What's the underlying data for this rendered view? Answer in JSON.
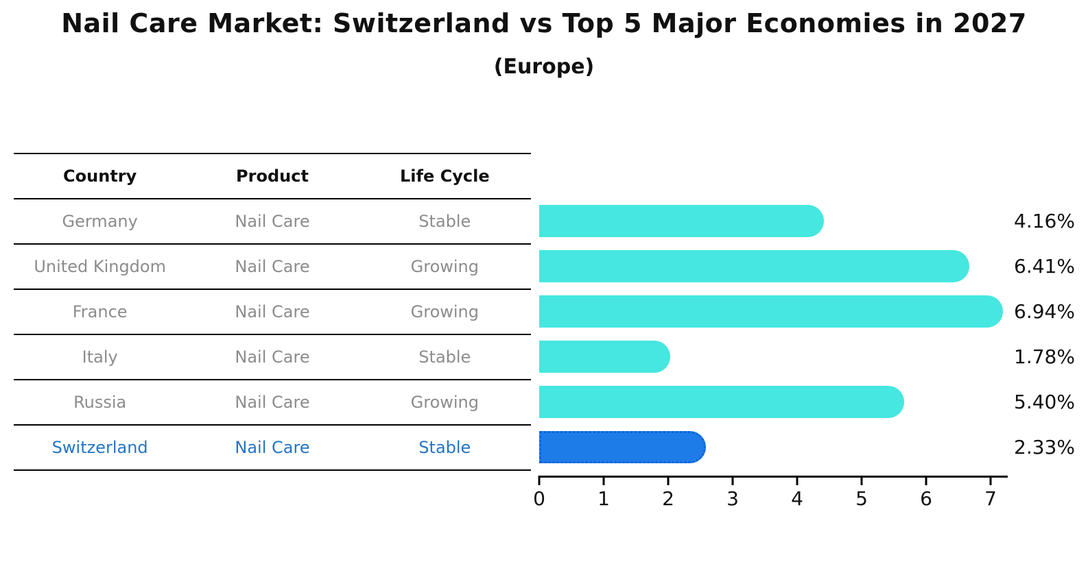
{
  "header": {
    "title": "Nail Care Market: Switzerland vs Top 5 Major Economies in 2027",
    "subtitle": "(Europe)"
  },
  "table": {
    "headers": {
      "country": "Country",
      "product": "Product",
      "life_cycle": "Life Cycle"
    },
    "rows": [
      {
        "country": "Germany",
        "product": "Nail Care",
        "life_cycle": "Stable",
        "highlight": false
      },
      {
        "country": "United Kingdom",
        "product": "Nail Care",
        "life_cycle": "Growing",
        "highlight": false
      },
      {
        "country": "France",
        "product": "Nail Care",
        "life_cycle": "Growing",
        "highlight": false
      },
      {
        "country": "Italy",
        "product": "Nail Care",
        "life_cycle": "Stable",
        "highlight": false
      },
      {
        "country": "Russia",
        "product": "Nail Care",
        "life_cycle": "Growing",
        "highlight": false
      },
      {
        "country": "Switzerland",
        "product": "Nail Care",
        "life_cycle": "Stable",
        "highlight": true
      }
    ]
  },
  "chart_data": {
    "type": "bar",
    "orientation": "horizontal",
    "title": "Nail Care Market: Switzerland vs Top 5 Major Economies in 2027",
    "subtitle": "(Europe)",
    "categories": [
      "Germany",
      "United Kingdom",
      "France",
      "Italy",
      "Russia",
      "Switzerland"
    ],
    "values": [
      4.16,
      6.41,
      6.94,
      1.78,
      5.4,
      2.33
    ],
    "value_labels": [
      "4.16%",
      "6.41%",
      "6.94%",
      "1.78%",
      "5.40%",
      "2.33%"
    ],
    "x_ticks": [
      "0",
      "1",
      "2",
      "3",
      "4",
      "5",
      "6",
      "7"
    ],
    "xlim": [
      0,
      7.27
    ],
    "highlight_index": 5,
    "legend": "none",
    "grid": false,
    "colors": {
      "bar": "#45E7E0",
      "highlight_bar": "#1E7CE8",
      "highlight_border": "#0E62D8",
      "row_text": "#8C8C8C",
      "highlight_text": "#2575C4",
      "axis": "#000000",
      "background": "#ffffff"
    }
  }
}
